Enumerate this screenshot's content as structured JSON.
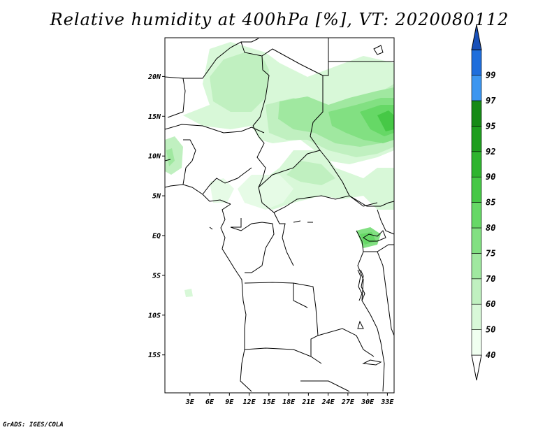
{
  "title": "Relative humidity at 400hPa [%], VT: 2020080112",
  "credit": "GrADS: IGES/COLA",
  "map": {
    "lat_ticks": [
      {
        "value": 20,
        "label": "20N"
      },
      {
        "value": 15,
        "label": "15N"
      },
      {
        "value": 10,
        "label": "10N"
      },
      {
        "value": 5,
        "label": "5N"
      },
      {
        "value": 0,
        "label": "EQ"
      },
      {
        "value": -5,
        "label": "5S"
      },
      {
        "value": -10,
        "label": "10S"
      },
      {
        "value": -15,
        "label": "15S"
      }
    ],
    "lon_ticks": [
      {
        "value": 3,
        "label": "3E"
      },
      {
        "value": 6,
        "label": "6E"
      },
      {
        "value": 9,
        "label": "9E"
      },
      {
        "value": 12,
        "label": "12E"
      },
      {
        "value": 15,
        "label": "15E"
      },
      {
        "value": 18,
        "label": "18E"
      },
      {
        "value": 21,
        "label": "21E"
      },
      {
        "value": 24,
        "label": "24E"
      },
      {
        "value": 27,
        "label": "27E"
      },
      {
        "value": 30,
        "label": "30E"
      },
      {
        "value": 33,
        "label": "33E"
      }
    ]
  },
  "colorbar": {
    "levels": [
      {
        "label": "40",
        "color": "#f0fff0"
      },
      {
        "label": "50",
        "color": "#d8f8d8"
      },
      {
        "label": "60",
        "color": "#c0f0c0"
      },
      {
        "label": "70",
        "color": "#a0e8a0"
      },
      {
        "label": "75",
        "color": "#82e082"
      },
      {
        "label": "80",
        "color": "#66d866"
      },
      {
        "label": "85",
        "color": "#46c846"
      },
      {
        "label": "90",
        "color": "#2eb42e"
      },
      {
        "label": "92",
        "color": "#1e9e1e"
      },
      {
        "label": "95",
        "color": "#168a16"
      },
      {
        "label": "97",
        "color": "#3c96f0"
      },
      {
        "label": "99",
        "color": "#1e6edc"
      }
    ],
    "top_color": "#1850b8"
  }
}
